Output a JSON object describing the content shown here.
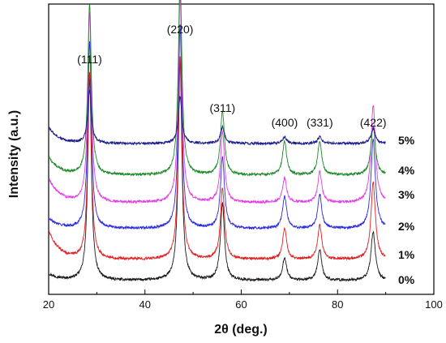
{
  "chart_data": {
    "type": "line",
    "title": "",
    "xlabel": "2θ (deg.)",
    "ylabel": "Intensity (a.u.)",
    "xlim": [
      20,
      100
    ],
    "x_ticks": [
      20,
      40,
      60,
      80,
      100
    ],
    "y_ticks_shown": false,
    "grid": false,
    "legend": "series labels at right end of each curve",
    "peaks": [
      {
        "label": "(111)",
        "x": 28.5
      },
      {
        "label": "(220)",
        "x": 47.3
      },
      {
        "label": "(311)",
        "x": 56.1
      },
      {
        "label": "(400)",
        "x": 69.0
      },
      {
        "label": "(331)",
        "x": 76.3
      },
      {
        "label": "(422)",
        "x": 87.4
      }
    ],
    "series": [
      {
        "name": "0%",
        "color": "#1a1a1a",
        "offset": 0,
        "peak_heights": [
          250,
          270,
          95,
          28,
          38,
          60
        ],
        "background_start": 8
      },
      {
        "name": "1%",
        "color": "#e02020",
        "offset": 1,
        "peak_heights": [
          230,
          250,
          88,
          38,
          42,
          95
        ],
        "background_start": 35
      },
      {
        "name": "2%",
        "color": "#2a2adf",
        "offset": 2,
        "peak_heights": [
          230,
          250,
          88,
          40,
          42,
          110
        ],
        "background_start": 12
      },
      {
        "name": "3%",
        "color": "#e040e0",
        "offset": 3,
        "peak_heights": [
          235,
          255,
          88,
          30,
          38,
          120
        ],
        "background_start": 30
      },
      {
        "name": "4%",
        "color": "#1f8a2a",
        "offset": 4,
        "peak_heights": [
          210,
          240,
          78,
          42,
          42,
          60
        ],
        "background_start": 22
      },
      {
        "name": "5%",
        "color": "#1c1c8a",
        "offset": 5,
        "peak_heights": [
          65,
          58,
          20,
          8,
          8,
          18
        ],
        "background_start": 20
      }
    ]
  }
}
